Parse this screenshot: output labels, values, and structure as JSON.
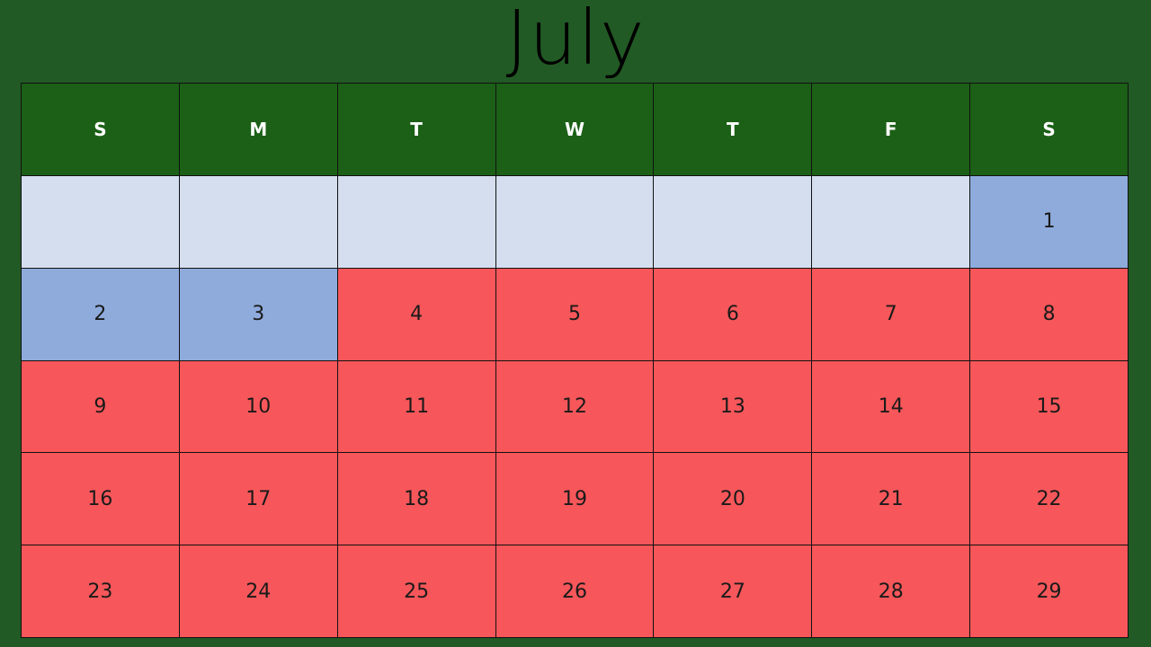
{
  "calendar": {
    "title": "July",
    "weekdays": [
      "S",
      "M",
      "T",
      "W",
      "T",
      "F",
      "S"
    ],
    "weeks": [
      [
        "",
        "",
        "",
        "",
        "",
        "",
        "1"
      ],
      [
        "2",
        "3",
        "4",
        "5",
        "6",
        "7",
        "8"
      ],
      [
        "9",
        "10",
        "11",
        "12",
        "13",
        "14",
        "15"
      ],
      [
        "16",
        "17",
        "18",
        "19",
        "20",
        "21",
        "22"
      ],
      [
        "23",
        "24",
        "25",
        "26",
        "27",
        "28",
        "29"
      ]
    ],
    "colors": {
      "background": "#225a25",
      "header": "#1b6016",
      "empty_day": "#d4deee",
      "blue_day": "#8eabdc",
      "red_day": "#f7575a"
    }
  }
}
